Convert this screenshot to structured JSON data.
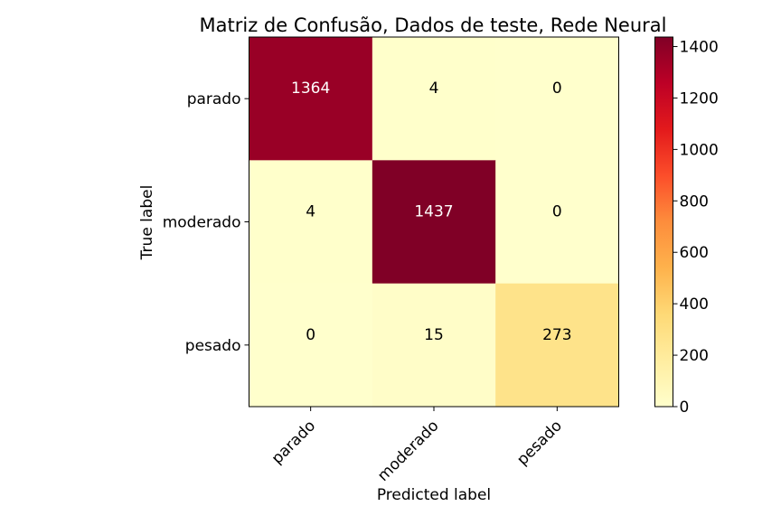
{
  "chart_data": {
    "type": "heatmap",
    "title": "Matriz de Confusão, Dados de teste, Rede Neural",
    "xlabel": "Predicted label",
    "ylabel": "True label",
    "x_categories": [
      "parado",
      "moderado",
      "pesado"
    ],
    "y_categories": [
      "parado",
      "moderado",
      "pesado"
    ],
    "values": [
      [
        1364,
        4,
        0
      ],
      [
        4,
        1437,
        0
      ],
      [
        0,
        15,
        273
      ]
    ],
    "colormap": "YlOrRd",
    "colorbar": {
      "range": [
        0,
        1437
      ],
      "ticks": [
        0,
        200,
        400,
        600,
        800,
        1000,
        1200,
        1400
      ]
    },
    "grid": false
  }
}
